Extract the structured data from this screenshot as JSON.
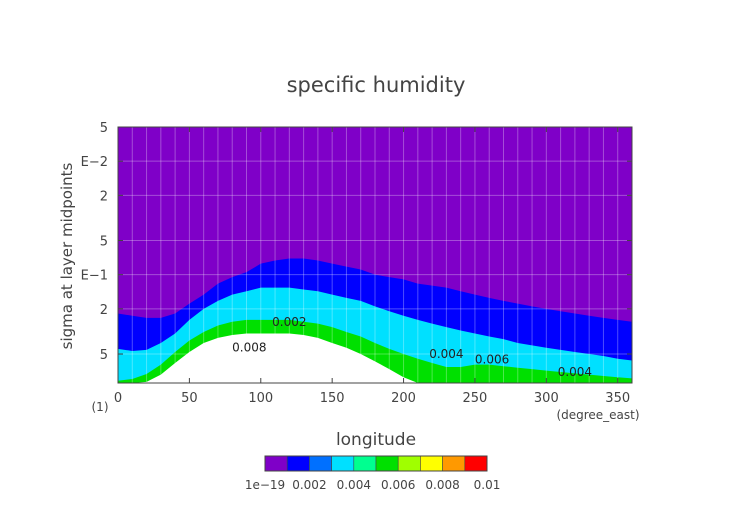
{
  "chart_data": {
    "type": "heatmap",
    "title": "specific humidity",
    "xlabel": "longitude",
    "ylabel": "sigma at layer midpoints",
    "x_unit": "(degree_east)",
    "y_corner_label": "(1)",
    "xlim": [
      0,
      360
    ],
    "y_scale": "log",
    "ylim_sigma": [
      0.9,
      0.005
    ],
    "x_ticks": [
      "0",
      "50",
      "100",
      "150",
      "200",
      "250",
      "300",
      "350"
    ],
    "y_ticks": [
      "5",
      "E−2",
      "2",
      "5",
      "E−1",
      "2",
      "5"
    ],
    "y_tick_values": [
      0.005,
      0.01,
      0.02,
      0.05,
      0.1,
      0.2,
      0.5
    ],
    "grid": true,
    "contour_labels": [
      {
        "text": "0.002",
        "x": 120,
        "sigma": 0.26
      },
      {
        "text": "0.008",
        "x": 92,
        "sigma": 0.44
      },
      {
        "text": "0.004",
        "x": 230,
        "sigma": 0.5
      },
      {
        "text": "0.006",
        "x": 262,
        "sigma": 0.56
      },
      {
        "text": "0.004",
        "x": 320,
        "sigma": 0.72
      }
    ],
    "colorbar": {
      "levels": [
        1e-19,
        0.001,
        0.002,
        0.003,
        0.004,
        0.005,
        0.006,
        0.007,
        0.008,
        0.009,
        0.01
      ],
      "tick_labels": [
        "1e−19",
        "0.002",
        "0.004",
        "0.006",
        "0.008",
        "0.01"
      ],
      "colors": [
        "#7f00c8",
        "#0000ff",
        "#0070ff",
        "#00e0ff",
        "#00ff90",
        "#00e000",
        "#a0ff00",
        "#ffff00",
        "#ff9900",
        "#ff0000",
        "#ff9999"
      ]
    },
    "profile_x": [
      0,
      10,
      20,
      30,
      40,
      50,
      60,
      70,
      80,
      90,
      100,
      110,
      120,
      130,
      140,
      150,
      160,
      170,
      180,
      190,
      200,
      210,
      220,
      230,
      240,
      250,
      260,
      270,
      280,
      290,
      300,
      310,
      320,
      330,
      340,
      350,
      360
    ],
    "iso_0001_sigma": [
      0.22,
      0.23,
      0.24,
      0.24,
      0.22,
      0.18,
      0.15,
      0.12,
      0.105,
      0.095,
      0.08,
      0.075,
      0.072,
      0.072,
      0.075,
      0.08,
      0.085,
      0.09,
      0.1,
      0.105,
      0.11,
      0.12,
      0.125,
      0.13,
      0.14,
      0.15,
      0.16,
      0.17,
      0.18,
      0.19,
      0.2,
      0.21,
      0.22,
      0.23,
      0.24,
      0.25,
      0.26
    ],
    "iso_0002_sigma": [
      0.45,
      0.47,
      0.46,
      0.4,
      0.33,
      0.25,
      0.2,
      0.17,
      0.15,
      0.14,
      0.13,
      0.13,
      0.13,
      0.135,
      0.14,
      0.15,
      0.16,
      0.17,
      0.19,
      0.21,
      0.23,
      0.25,
      0.27,
      0.29,
      0.31,
      0.33,
      0.35,
      0.37,
      0.4,
      0.42,
      0.44,
      0.46,
      0.48,
      0.5,
      0.52,
      0.55,
      0.57
    ],
    "iso_0005_sigma": [
      0.86,
      0.83,
      0.75,
      0.62,
      0.48,
      0.38,
      0.32,
      0.28,
      0.26,
      0.25,
      0.25,
      0.25,
      0.25,
      0.26,
      0.27,
      0.29,
      0.32,
      0.35,
      0.4,
      0.45,
      0.5,
      0.55,
      0.6,
      0.65,
      0.65,
      0.62,
      0.62,
      0.64,
      0.66,
      0.68,
      0.7,
      0.72,
      0.74,
      0.76,
      0.78,
      0.8,
      0.82
    ],
    "iso_0009_sigma": [
      0.9,
      0.9,
      0.88,
      0.76,
      0.6,
      0.48,
      0.4,
      0.36,
      0.34,
      0.33,
      0.33,
      0.33,
      0.33,
      0.34,
      0.36,
      0.4,
      0.44,
      0.5,
      0.58,
      0.68,
      0.8,
      0.9,
      0.9,
      0.9,
      0.9,
      0.9,
      0.9,
      0.9,
      0.9,
      0.9,
      0.9,
      0.9,
      0.9,
      0.9,
      0.9,
      0.9,
      0.9
    ]
  }
}
